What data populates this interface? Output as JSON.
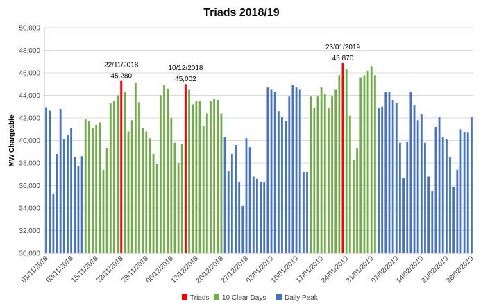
{
  "chart_data": {
    "type": "bar",
    "title": "Triads 2018/19",
    "xlabel": "",
    "ylabel": "MW Chargeable",
    "ylim": [
      30000,
      50000
    ],
    "yticks": [
      30000,
      32000,
      34000,
      36000,
      38000,
      40000,
      42000,
      44000,
      46000,
      48000,
      50000
    ],
    "ytick_labels": [
      "30,000",
      "32,000",
      "34,000",
      "36,000",
      "38,000",
      "40,000",
      "42,000",
      "44,000",
      "46,000",
      "48,000",
      "50,000"
    ],
    "xtick_labels": [
      "01/11/2018",
      "08/11/2018",
      "15/11/2018",
      "22/11/2018",
      "29/11/2018",
      "06/12/2018",
      "13/12/2018",
      "20/12/2018",
      "27/12/2018",
      "03/01/2019",
      "10/01/2019",
      "17/01/2019",
      "24/01/2019",
      "31/01/2019",
      "07/02/2019",
      "14/02/2019",
      "21/02/2019",
      "28/02/2019"
    ],
    "xtick_every": 7,
    "grid": true,
    "legend_position": "bottom",
    "series": [
      {
        "name": "Triads",
        "color": "#ff0000"
      },
      {
        "name": "10 Clear Days",
        "color": "#70ad47"
      },
      {
        "name": "Daily Peak",
        "color": "#4472c4"
      }
    ],
    "days": [
      {
        "v": 42950,
        "s": 2
      },
      {
        "v": 42650,
        "s": 2
      },
      {
        "v": 35300,
        "s": 2
      },
      {
        "v": 38800,
        "s": 2
      },
      {
        "v": 42800,
        "s": 2
      },
      {
        "v": 40100,
        "s": 2
      },
      {
        "v": 40500,
        "s": 2
      },
      {
        "v": 41100,
        "s": 2
      },
      {
        "v": 38500,
        "s": 2
      },
      {
        "v": 37700,
        "s": 2
      },
      {
        "v": 38600,
        "s": 2
      },
      {
        "v": 41900,
        "s": 1
      },
      {
        "v": 41700,
        "s": 1
      },
      {
        "v": 41100,
        "s": 1
      },
      {
        "v": 41400,
        "s": 1
      },
      {
        "v": 41600,
        "s": 1
      },
      {
        "v": 37400,
        "s": 1
      },
      {
        "v": 39300,
        "s": 1
      },
      {
        "v": 43300,
        "s": 1
      },
      {
        "v": 43500,
        "s": 1
      },
      {
        "v": 44000,
        "s": 1
      },
      {
        "v": 45280,
        "s": 0
      },
      {
        "v": 44300,
        "s": 1
      },
      {
        "v": 40800,
        "s": 1
      },
      {
        "v": 41800,
        "s": 1
      },
      {
        "v": 45100,
        "s": 1
      },
      {
        "v": 43400,
        "s": 1
      },
      {
        "v": 41100,
        "s": 1
      },
      {
        "v": 40800,
        "s": 1
      },
      {
        "v": 40200,
        "s": 1
      },
      {
        "v": 38800,
        "s": 1
      },
      {
        "v": 37900,
        "s": 1
      },
      {
        "v": 44000,
        "s": 1
      },
      {
        "v": 44900,
        "s": 1
      },
      {
        "v": 44600,
        "s": 1
      },
      {
        "v": 42000,
        "s": 1
      },
      {
        "v": 39800,
        "s": 1
      },
      {
        "v": 38000,
        "s": 1
      },
      {
        "v": 39700,
        "s": 1
      },
      {
        "v": 45002,
        "s": 0
      },
      {
        "v": 44500,
        "s": 1
      },
      {
        "v": 43200,
        "s": 1
      },
      {
        "v": 43500,
        "s": 1
      },
      {
        "v": 43500,
        "s": 1
      },
      {
        "v": 41300,
        "s": 1
      },
      {
        "v": 42400,
        "s": 1
      },
      {
        "v": 43500,
        "s": 1
      },
      {
        "v": 43700,
        "s": 1
      },
      {
        "v": 43600,
        "s": 1
      },
      {
        "v": 42400,
        "s": 1
      },
      {
        "v": 40300,
        "s": 2
      },
      {
        "v": 37300,
        "s": 2
      },
      {
        "v": 38800,
        "s": 2
      },
      {
        "v": 39600,
        "s": 2
      },
      {
        "v": 36300,
        "s": 2
      },
      {
        "v": 34200,
        "s": 2
      },
      {
        "v": 40200,
        "s": 2
      },
      {
        "v": 39400,
        "s": 2
      },
      {
        "v": 36800,
        "s": 2
      },
      {
        "v": 36600,
        "s": 2
      },
      {
        "v": 36300,
        "s": 2
      },
      {
        "v": 36300,
        "s": 2
      },
      {
        "v": 44700,
        "s": 2
      },
      {
        "v": 44500,
        "s": 2
      },
      {
        "v": 44300,
        "s": 2
      },
      {
        "v": 42600,
        "s": 2
      },
      {
        "v": 42100,
        "s": 2
      },
      {
        "v": 41700,
        "s": 2
      },
      {
        "v": 43900,
        "s": 2
      },
      {
        "v": 44900,
        "s": 2
      },
      {
        "v": 44700,
        "s": 2
      },
      {
        "v": 44500,
        "s": 2
      },
      {
        "v": 37200,
        "s": 2
      },
      {
        "v": 37200,
        "s": 2
      },
      {
        "v": 43900,
        "s": 1
      },
      {
        "v": 42900,
        "s": 1
      },
      {
        "v": 43900,
        "s": 1
      },
      {
        "v": 44700,
        "s": 1
      },
      {
        "v": 44100,
        "s": 1
      },
      {
        "v": 42900,
        "s": 1
      },
      {
        "v": 43900,
        "s": 1
      },
      {
        "v": 44500,
        "s": 1
      },
      {
        "v": 45800,
        "s": 1
      },
      {
        "v": 46870,
        "s": 0
      },
      {
        "v": 46300,
        "s": 1
      },
      {
        "v": 42200,
        "s": 1
      },
      {
        "v": 38300,
        "s": 1
      },
      {
        "v": 39300,
        "s": 1
      },
      {
        "v": 45600,
        "s": 1
      },
      {
        "v": 45800,
        "s": 1
      },
      {
        "v": 46200,
        "s": 1
      },
      {
        "v": 46600,
        "s": 1
      },
      {
        "v": 45800,
        "s": 1
      },
      {
        "v": 42900,
        "s": 2
      },
      {
        "v": 43000,
        "s": 2
      },
      {
        "v": 44300,
        "s": 2
      },
      {
        "v": 44300,
        "s": 2
      },
      {
        "v": 43600,
        "s": 2
      },
      {
        "v": 43300,
        "s": 2
      },
      {
        "v": 39800,
        "s": 2
      },
      {
        "v": 36700,
        "s": 2
      },
      {
        "v": 39900,
        "s": 2
      },
      {
        "v": 44300,
        "s": 2
      },
      {
        "v": 43100,
        "s": 2
      },
      {
        "v": 41800,
        "s": 2
      },
      {
        "v": 42300,
        "s": 2
      },
      {
        "v": 39800,
        "s": 2
      },
      {
        "v": 36800,
        "s": 2
      },
      {
        "v": 35500,
        "s": 2
      },
      {
        "v": 41200,
        "s": 2
      },
      {
        "v": 42100,
        "s": 2
      },
      {
        "v": 40300,
        "s": 2
      },
      {
        "v": 40100,
        "s": 2
      },
      {
        "v": 38500,
        "s": 2
      },
      {
        "v": 35900,
        "s": 2
      },
      {
        "v": 37400,
        "s": 2
      },
      {
        "v": 41000,
        "s": 2
      },
      {
        "v": 40700,
        "s": 2
      },
      {
        "v": 40700,
        "s": 2
      },
      {
        "v": 42100,
        "s": 2
      }
    ],
    "annotations": [
      {
        "date": "22/11/2018",
        "value": "45,280",
        "day_index": 21
      },
      {
        "date": "10/12/2018",
        "value": "45,002",
        "day_index": 39
      },
      {
        "date": "23/01/2019",
        "value": "46,870",
        "day_index": 83
      }
    ]
  }
}
